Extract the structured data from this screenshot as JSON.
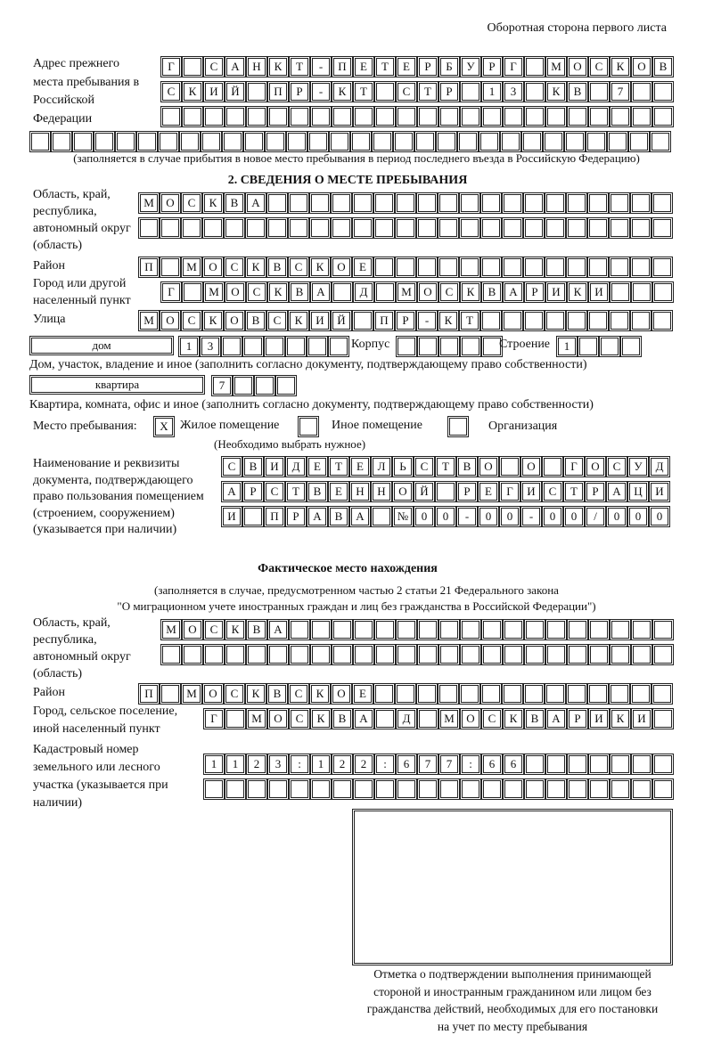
{
  "header": {
    "page_side": "Оборотная сторона первого листа"
  },
  "prev_address": {
    "label": "Адрес прежнего места пребывания в Российской Федерации",
    "rows": [
      [
        "Г",
        "",
        "С",
        "А",
        "Н",
        "К",
        "Т",
        "-",
        "П",
        "Е",
        "Т",
        "Е",
        "Р",
        "Б",
        "У",
        "Р",
        "Г",
        "",
        "М",
        "О",
        "С",
        "К",
        "О",
        "В"
      ],
      [
        "С",
        "К",
        "И",
        "Й",
        "",
        "П",
        "Р",
        "-",
        "К",
        "Т",
        "",
        "С",
        "Т",
        "Р",
        "",
        "1",
        "3",
        "",
        "К",
        "В",
        "",
        "7",
        "",
        ""
      ],
      [
        "",
        "",
        "",
        "",
        "",
        "",
        "",
        "",
        "",
        "",
        "",
        "",
        "",
        "",
        "",
        "",
        "",
        "",
        "",
        "",
        "",
        "",
        "",
        ""
      ],
      [
        "",
        "",
        "",
        "",
        "",
        "",
        "",
        "",
        "",
        "",
        "",
        "",
        "",
        "",
        "",
        "",
        "",
        "",
        "",
        "",
        "",
        "",
        "",
        "",
        "",
        "",
        "",
        "",
        "",
        ""
      ]
    ],
    "note": "(заполняется в случае прибытия в новое место пребывания в период последнего въезда в Российскую Федерацию)"
  },
  "section2": {
    "title": "2. СВЕДЕНИЯ О МЕСТЕ ПРЕБЫВАНИЯ",
    "region_label": "Область, край, республика, автономный округ (область)",
    "region_rows": [
      [
        "М",
        "О",
        "С",
        "К",
        "В",
        "А",
        "",
        "",
        "",
        "",
        "",
        "",
        "",
        "",
        "",
        "",
        "",
        "",
        "",
        "",
        "",
        "",
        "",
        "",
        ""
      ],
      [
        "",
        "",
        "",
        "",
        "",
        "",
        "",
        "",
        "",
        "",
        "",
        "",
        "",
        "",
        "",
        "",
        "",
        "",
        "",
        "",
        "",
        "",
        "",
        "",
        ""
      ]
    ],
    "district_label": "Район",
    "district_row": [
      "П",
      "",
      "М",
      "О",
      "С",
      "К",
      "В",
      "С",
      "К",
      "О",
      "Е",
      "",
      "",
      "",
      "",
      "",
      "",
      "",
      "",
      "",
      "",
      "",
      "",
      "",
      ""
    ],
    "city_label": "Город или другой населенный пункт",
    "city_row": [
      "Г",
      "",
      "М",
      "О",
      "С",
      "К",
      "В",
      "А",
      "",
      "Д",
      "",
      "М",
      "О",
      "С",
      "К",
      "В",
      "А",
      "Р",
      "И",
      "К",
      "И",
      "",
      "",
      ""
    ],
    "street_label": "Улица",
    "street_row": [
      "М",
      "О",
      "С",
      "К",
      "О",
      "В",
      "С",
      "К",
      "И",
      "Й",
      "",
      "П",
      "Р",
      "-",
      "К",
      "Т",
      "",
      "",
      "",
      "",
      "",
      "",
      "",
      "",
      ""
    ],
    "house_type": "дом",
    "house_cells": [
      "1",
      "3",
      "",
      "",
      "",
      "",
      "",
      ""
    ],
    "korpus_label": "Корпус",
    "korpus_cells": [
      "",
      "",
      "",
      "",
      ""
    ],
    "building_label": "Строение",
    "building_cells": [
      "1",
      "",
      "",
      ""
    ],
    "house_note": "Дом, участок, владение и иное (заполнить согласно документу, подтверждающему право собственности)",
    "apt_type": "квартира",
    "apt_cells": [
      "7",
      "",
      "",
      ""
    ],
    "apt_note": "Квартира, комната, офис и иное (заполнить согласно документу, подтверждающему право собственности)",
    "stay_label": "Место пребывания:",
    "stay_options": [
      {
        "label": "Жилое помещение",
        "mark": "X"
      },
      {
        "label": "Иное помещение",
        "mark": ""
      },
      {
        "label": "Организация",
        "mark": ""
      }
    ],
    "stay_note": "(Необходимо выбрать нужное)",
    "doc_label": "Наименование и реквизиты документа, подтверждающего право пользования помещением (строением, сооружением) (указывается при наличии)",
    "doc_rows": [
      [
        "С",
        "В",
        "И",
        "Д",
        "Е",
        "Т",
        "Е",
        "Л",
        "Ь",
        "С",
        "Т",
        "В",
        "О",
        "",
        "О",
        "",
        "Г",
        "О",
        "С",
        "У",
        "Д"
      ],
      [
        "А",
        "Р",
        "С",
        "Т",
        "В",
        "Е",
        "Н",
        "Н",
        "О",
        "Й",
        "",
        "Р",
        "Е",
        "Г",
        "И",
        "С",
        "Т",
        "Р",
        "А",
        "Ц",
        "И"
      ],
      [
        "И",
        "",
        "П",
        "Р",
        "А",
        "В",
        "А",
        "",
        "№",
        "0",
        "0",
        "-",
        "0",
        "0",
        "-",
        "0",
        "0",
        "/",
        "0",
        "0",
        "0"
      ]
    ]
  },
  "actual": {
    "title": "Фактическое место нахождения",
    "note1": "(заполняется в случае, предусмотренном частью 2 статьи 21 Федерального закона",
    "note2": "\"О миграционном учете иностранных граждан и лиц без гражданства в Российской Федерации\")",
    "region_label": "Область, край, республика, автономный округ (область)",
    "region_rows": [
      [
        "М",
        "О",
        "С",
        "К",
        "В",
        "А",
        "",
        "",
        "",
        "",
        "",
        "",
        "",
        "",
        "",
        "",
        "",
        "",
        "",
        "",
        "",
        "",
        "",
        ""
      ],
      [
        "",
        "",
        "",
        "",
        "",
        "",
        "",
        "",
        "",
        "",
        "",
        "",
        "",
        "",
        "",
        "",
        "",
        "",
        "",
        "",
        "",
        "",
        "",
        ""
      ]
    ],
    "district_label": "Район",
    "district_row": [
      "П",
      "",
      "М",
      "О",
      "С",
      "К",
      "В",
      "С",
      "К",
      "О",
      "Е",
      "",
      "",
      "",
      "",
      "",
      "",
      "",
      "",
      "",
      "",
      "",
      "",
      "",
      ""
    ],
    "city_label": "Город, сельское поселение, иной населенный пункт",
    "city_row": [
      "Г",
      "",
      "М",
      "О",
      "С",
      "К",
      "В",
      "А",
      "",
      "Д",
      "",
      "М",
      "О",
      "С",
      "К",
      "В",
      "А",
      "Р",
      "И",
      "К",
      "И",
      ""
    ],
    "cadastral_label": "Кадастровый номер земельного или лесного участка (указывается при наличии)",
    "cadastral_rows": [
      [
        "1",
        "1",
        "2",
        "3",
        ":",
        "1",
        "2",
        "2",
        ":",
        "6",
        "7",
        "7",
        ":",
        "6",
        "6",
        "",
        "",
        "",
        "",
        "",
        "",
        ""
      ],
      [
        "",
        "",
        "",
        "",
        "",
        "",
        "",
        "",
        "",
        "",
        "",
        "",
        "",
        "",
        "",
        "",
        "",
        "",
        "",
        "",
        "",
        ""
      ]
    ],
    "stamp_caption": "Отметка о подтверждении выполнения принимающей стороной и иностранным гражданином или лицом без гражданства действий, необходимых для его постановки на учет по месту пребывания"
  }
}
